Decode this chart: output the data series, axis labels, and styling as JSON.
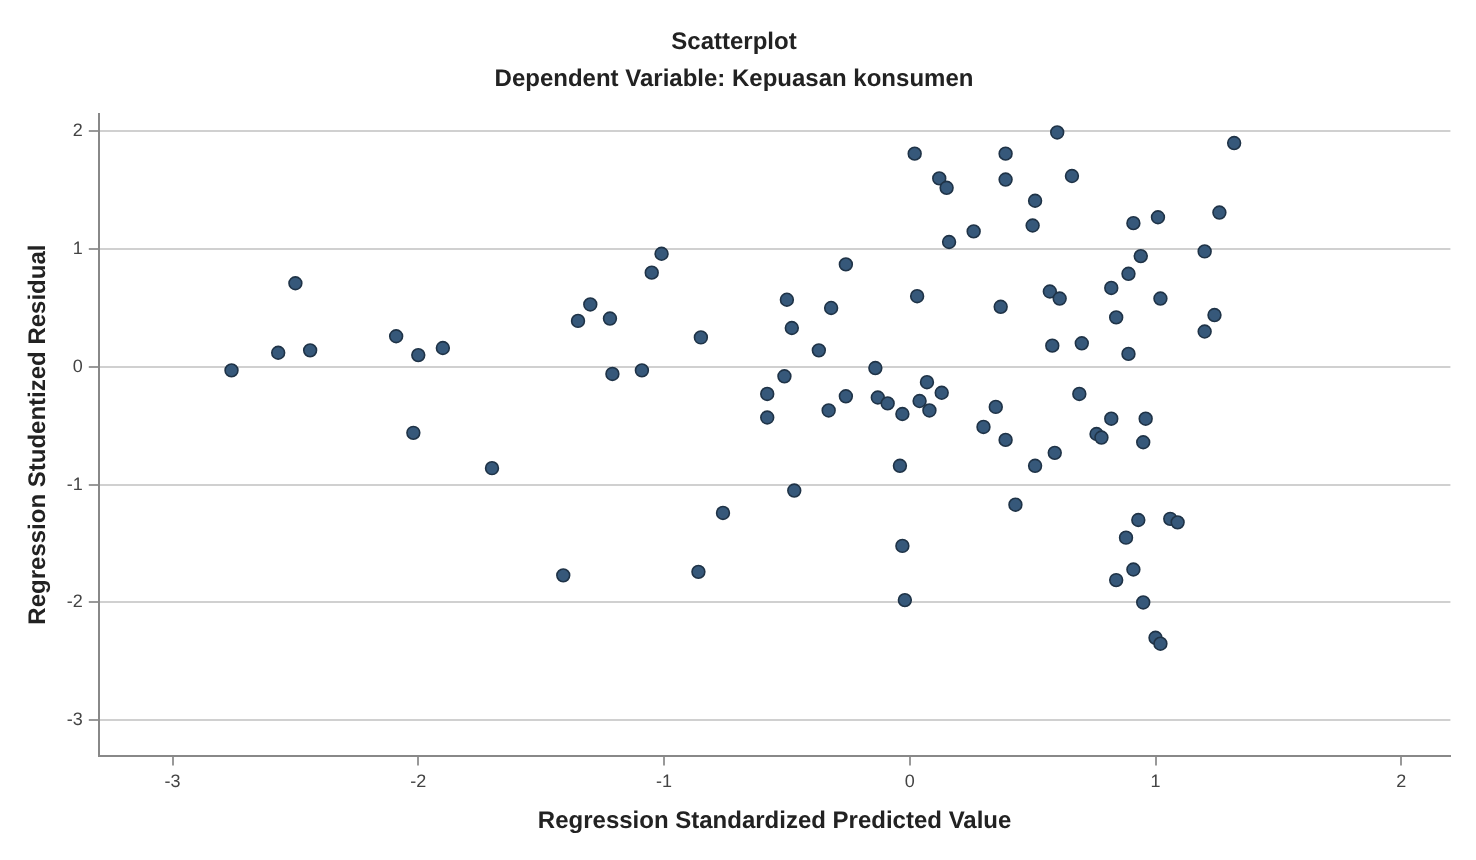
{
  "chart_data": {
    "type": "scatter",
    "title": "Scatterplot",
    "subtitle": "Dependent Variable: Kepuasan konsumen",
    "xlabel": "Regression Standardized Predicted Value",
    "ylabel": "Regression Studentized Residual",
    "xlim": [
      -3.3,
      2.2
    ],
    "ylim": [
      -3.3,
      2.15
    ],
    "xticks": [
      -3,
      -2,
      -1,
      0,
      1,
      2
    ],
    "yticks": [
      -3,
      -2,
      -1,
      0,
      1,
      2
    ],
    "grid": "y",
    "marker": "circle",
    "legend": false,
    "series": [
      {
        "color": "#36587a",
        "x": [
          -2.76,
          -2.57,
          -2.5,
          -2.44,
          -2.09,
          -2.0,
          -1.9,
          -2.02,
          -1.7,
          -1.41,
          -1.35,
          -1.3,
          -1.22,
          -1.21,
          -1.09,
          -1.05,
          -1.01,
          -0.85,
          -0.86,
          -0.76,
          -0.58,
          -0.58,
          0.6,
          1.32,
          0.02,
          0.39,
          0.12,
          0.15,
          0.39,
          0.66,
          0.51,
          0.5,
          0.26,
          0.16,
          0.91,
          1.01,
          1.26,
          1.2,
          0.94,
          0.89,
          0.82,
          0.84,
          1.02,
          1.24,
          1.2,
          0.89,
          -0.26,
          -0.5,
          -0.32,
          -0.48,
          -0.37,
          0.03,
          0.37,
          0.57,
          0.61,
          0.58,
          0.7,
          -0.51,
          -0.14,
          -0.26,
          -0.33,
          -0.13,
          -0.09,
          -0.03,
          0.07,
          0.13,
          0.04,
          0.08,
          0.35,
          0.3,
          0.39,
          0.69,
          0.82,
          0.96,
          0.76,
          0.95,
          0.78,
          -0.04,
          0.51,
          0.59,
          -0.47,
          0.43,
          -0.03,
          -0.02,
          0.93,
          0.88,
          0.91,
          0.84,
          0.95,
          1.06,
          1.09,
          1.0,
          1.02
        ],
        "values": [
          -0.03,
          0.12,
          0.71,
          0.14,
          0.26,
          0.1,
          0.16,
          -0.56,
          -0.86,
          -1.77,
          0.39,
          0.53,
          0.41,
          -0.06,
          -0.03,
          0.8,
          0.96,
          0.25,
          -1.74,
          -1.24,
          -0.23,
          -0.43,
          1.99,
          1.9,
          1.81,
          1.81,
          1.6,
          1.52,
          1.59,
          1.62,
          1.41,
          1.2,
          1.15,
          1.06,
          1.22,
          1.27,
          1.31,
          0.98,
          0.94,
          0.79,
          0.67,
          0.42,
          0.58,
          0.44,
          0.3,
          0.11,
          0.87,
          0.57,
          0.5,
          0.33,
          0.14,
          0.6,
          0.51,
          0.64,
          0.58,
          0.18,
          0.2,
          -0.08,
          -0.01,
          -0.25,
          -0.37,
          -0.26,
          -0.31,
          -0.4,
          -0.13,
          -0.22,
          -0.29,
          -0.37,
          -0.34,
          -0.51,
          -0.62,
          -0.23,
          -0.44,
          -0.44,
          -0.57,
          -0.64,
          -0.6,
          -0.84,
          -0.84,
          -0.73,
          -1.05,
          -1.17,
          -1.52,
          -1.98,
          -1.3,
          -1.45,
          -1.72,
          -1.81,
          -2.0,
          -1.29,
          -1.32,
          -2.3,
          -2.35
        ]
      }
    ]
  }
}
